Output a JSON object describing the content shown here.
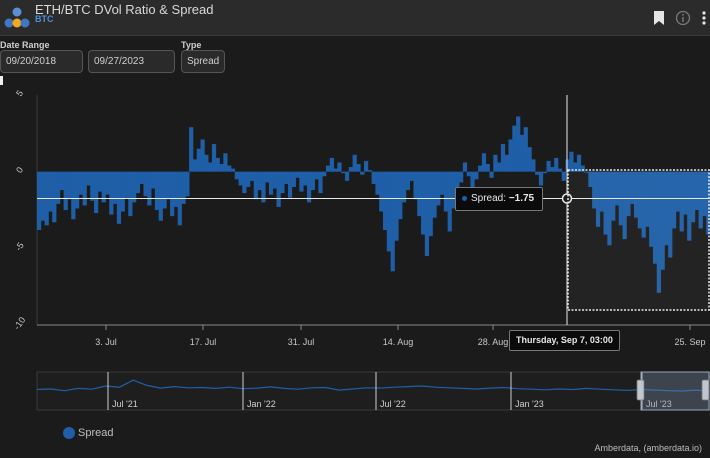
{
  "header": {
    "title": "ETH/BTC DVol Ratio & Spread",
    "subtitle": "BTC",
    "icons": [
      "logo-icon",
      "bookmark-icon",
      "info-icon",
      "more-icon"
    ]
  },
  "controls": {
    "date_range_label": "Date Range",
    "start_date": "09/20/2018",
    "end_date": "09/27/2023",
    "type_label": "Type",
    "type_value": "Spread"
  },
  "tooltip": {
    "series": "Spread:",
    "value": "−1.75",
    "date": "Thursday, Sep 7, 03:00"
  },
  "legend": {
    "label": "Spread"
  },
  "credit": "Amberdata, (amberdata.io)",
  "colors": {
    "series": "#1f5fa8",
    "background": "#1b1b1b"
  },
  "chart_data": {
    "type": "area",
    "series": [
      {
        "name": "Spread",
        "values": [
          -3.8,
          -3.2,
          -3.5,
          -2.6,
          -3.3,
          -2.1,
          -1.2,
          -2.5,
          -1.8,
          -3.1,
          -2.4,
          -1.5,
          -2.2,
          -0.9,
          -1.9,
          -2.7,
          -1.3,
          -2.0,
          -1.5,
          -2.8,
          -2.1,
          -3.4,
          -2.6,
          -1.7,
          -2.9,
          -2.0,
          -1.4,
          -0.8,
          -1.6,
          -2.2,
          -1.1,
          -2.5,
          -3.2,
          -2.4,
          -1.8,
          -2.9,
          -2.3,
          -3.5,
          -2.1,
          -1.6,
          2.9,
          0.8,
          1.5,
          2.1,
          1.1,
          0.6,
          1.8,
          0.9,
          0.5,
          1.2,
          0.4,
          0.2,
          -0.5,
          -0.9,
          -1.4,
          -1.0,
          -0.6,
          -1.8,
          -1.2,
          -2.0,
          -0.7,
          -1.5,
          -1.1,
          -2.3,
          -1.4,
          -0.8,
          -1.7,
          -1.0,
          -0.4,
          -1.3,
          -0.9,
          -2.0,
          -1.2,
          -0.5,
          -1.4,
          -0.3,
          0.4,
          0.9,
          0.2,
          0.6,
          -0.1,
          -0.6,
          0.3,
          1.1,
          0.5,
          -0.2,
          0.7,
          0.1,
          -0.8,
          -1.5,
          -2.6,
          -3.8,
          -5.2,
          -6.5,
          -4.5,
          -3.1,
          -2.0,
          -1.2,
          -0.6,
          -1.8,
          -2.9,
          -4.1,
          -5.5,
          -4.2,
          -3.0,
          -2.2,
          -1.5,
          -2.6,
          -3.9,
          -2.4,
          -1.7,
          -0.7,
          0.6,
          -0.3,
          -1.1,
          -0.5,
          0.4,
          1.2,
          0.5,
          -0.4,
          1.1,
          0.6,
          1.8,
          1.1,
          2.1,
          3.0,
          3.6,
          2.4,
          2.9,
          1.6,
          0.8,
          -0.2,
          -0.9,
          -0.1,
          0.7,
          0.3,
          0.9,
          0.2,
          -0.6,
          0.8,
          1.3,
          0.6,
          1.1,
          0.4,
          0.0,
          -1.0,
          -2.4,
          -3.6,
          -2.6,
          -4.1,
          -4.8,
          -3.2,
          -2.2,
          -3.5,
          -4.4,
          -2.9,
          -2.1,
          -3.0,
          -3.7,
          -4.3,
          -3.6,
          -4.9,
          -6.0,
          -7.9,
          -6.4,
          -4.8,
          -5.6,
          -3.7,
          -2.6,
          -3.9,
          -2.8,
          -4.5,
          -3.3,
          -2.5,
          -3.7,
          -2.9,
          -4.1
        ]
      }
    ],
    "x_ticks": [
      "3. Jul",
      "17. Jul",
      "31. Jul",
      "14. Aug",
      "28. Aug",
      "25. Sep"
    ],
    "y_ticks": [
      5,
      0,
      -5,
      -10
    ],
    "ylim": [
      -10,
      5
    ],
    "crosshair": {
      "date": "Thursday, Sep 7, 03:00",
      "value": -1.75
    },
    "navigator_ticks": [
      "Jul '21",
      "Jan '22",
      "Jul '22",
      "Jan '23",
      "Jul '23"
    ],
    "navigator_values": [
      -2.0,
      -1.8,
      -2.4,
      -1.6,
      -1.9,
      -0.8,
      -1.2,
      1.2,
      -0.6,
      -1.5,
      -1.0,
      -1.4,
      -1.3,
      -1.6,
      -1.2,
      -1.7,
      -1.5,
      -1.1,
      -1.6,
      -1.9,
      -1.4,
      -1.3,
      -2.2,
      -1.8,
      -1.4,
      -1.5,
      -1.2,
      -1.0,
      -0.8,
      -1.2,
      -1.4,
      -1.6,
      -1.8,
      -1.5,
      -1.3,
      -1.7,
      -1.9,
      -2.1,
      -1.8,
      -2.0,
      -1.6,
      -1.9,
      -2.1,
      -2.3,
      -2.0,
      -2.2,
      -2.4,
      -2.5,
      -2.2,
      -2.6
    ]
  }
}
